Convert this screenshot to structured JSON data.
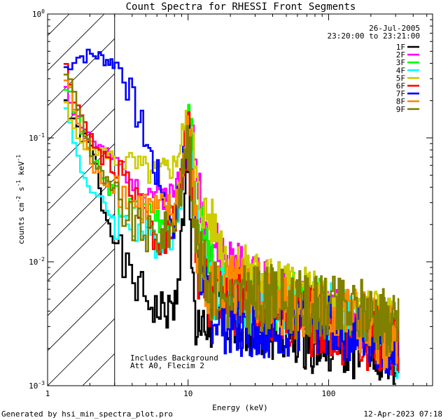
{
  "chart_data": {
    "type": "line",
    "title": "Count Spectra for RHESSI Front Segments",
    "xlabel": "Energy (keV)",
    "ylabel_parts": [
      "counts cm",
      "-2",
      " s",
      "-1",
      " keV",
      "-1"
    ],
    "x_scale": "log",
    "y_scale": "log",
    "xlim": [
      1.0,
      550
    ],
    "ylim": [
      0.001,
      1.0
    ],
    "x_ticks": [
      {
        "value": 1,
        "label": "1"
      },
      {
        "value": 10,
        "label": "10"
      },
      {
        "value": 100,
        "label": "100"
      }
    ],
    "y_ticks": [
      {
        "value": 1,
        "mant": "10",
        "exp": "0"
      },
      {
        "value": 0.1,
        "mant": "10",
        "exp": "-1"
      },
      {
        "value": 0.01,
        "mant": "10",
        "exp": "-2"
      },
      {
        "value": 0.001,
        "mant": "10",
        "exp": "-3"
      }
    ],
    "date": "26-Jul-2005",
    "time_range": "23:20:00 to 23:21:00",
    "annotation_lines": [
      "Includes Background",
      "Att A0, Flecim 2"
    ],
    "hatched_region_keV": [
      1.0,
      3.0
    ],
    "footer_left": "Generated by hsi_min_spectra_plot.pro",
    "footer_right": "12-Apr-2023 07:18",
    "series": [
      {
        "name": "1F",
        "color": "#000000",
        "anchors": [
          [
            1.3,
            0.23
          ],
          [
            1.5,
            0.13
          ],
          [
            1.8,
            0.1
          ],
          [
            2.2,
            0.07
          ],
          [
            2.4,
            0.03
          ],
          [
            2.8,
            0.02
          ],
          [
            3.5,
            0.009
          ],
          [
            4.5,
            0.006
          ],
          [
            6,
            0.004
          ],
          [
            8,
            0.004
          ],
          [
            10,
            0.05
          ],
          [
            11.5,
            0.002
          ],
          [
            14,
            0.003
          ],
          [
            20,
            0.004
          ],
          [
            40,
            0.003
          ],
          [
            100,
            0.0022
          ],
          [
            200,
            0.002
          ],
          [
            300,
            0.0015
          ]
        ],
        "jitter": 0.28,
        "seed": 1
      },
      {
        "name": "2F",
        "color": "#ff00ff",
        "anchors": [
          [
            1.3,
            0.3
          ],
          [
            1.6,
            0.15
          ],
          [
            2.2,
            0.09
          ],
          [
            3.2,
            0.06
          ],
          [
            4,
            0.05
          ],
          [
            5,
            0.04
          ],
          [
            6,
            0.035
          ],
          [
            8,
            0.035
          ],
          [
            10,
            0.12
          ],
          [
            12,
            0.04
          ],
          [
            14,
            0.015
          ],
          [
            20,
            0.01
          ],
          [
            40,
            0.006
          ],
          [
            100,
            0.004
          ],
          [
            200,
            0.003
          ],
          [
            300,
            0.002
          ]
        ],
        "jitter": 0.2,
        "seed": 2
      },
      {
        "name": "3F",
        "color": "#00ff00",
        "anchors": [
          [
            1.3,
            0.3
          ],
          [
            1.6,
            0.15
          ],
          [
            2.2,
            0.06
          ],
          [
            3.2,
            0.03
          ],
          [
            4,
            0.025
          ],
          [
            6,
            0.025
          ],
          [
            8,
            0.02
          ],
          [
            10,
            0.12
          ],
          [
            12,
            0.02
          ],
          [
            15,
            0.008
          ],
          [
            20,
            0.006
          ],
          [
            40,
            0.005
          ],
          [
            100,
            0.004
          ],
          [
            200,
            0.003
          ],
          [
            300,
            0.0025
          ]
        ],
        "jitter": 0.25,
        "seed": 3
      },
      {
        "name": "4F",
        "color": "#00ffff",
        "anchors": [
          [
            1.3,
            0.25
          ],
          [
            1.5,
            0.1
          ],
          [
            1.8,
            0.05
          ],
          [
            2.2,
            0.035
          ],
          [
            3.2,
            0.02
          ],
          [
            4,
            0.02
          ],
          [
            6,
            0.015
          ],
          [
            8,
            0.018
          ],
          [
            10,
            0.08
          ],
          [
            12,
            0.012
          ],
          [
            15,
            0.006
          ],
          [
            20,
            0.005
          ],
          [
            40,
            0.004
          ],
          [
            100,
            0.004
          ],
          [
            200,
            0.003
          ],
          [
            300,
            0.002
          ]
        ],
        "jitter": 0.25,
        "seed": 4
      },
      {
        "name": "5F",
        "color": "#cccc00",
        "anchors": [
          [
            1.3,
            0.2
          ],
          [
            1.6,
            0.1
          ],
          [
            2.2,
            0.08
          ],
          [
            3.2,
            0.07
          ],
          [
            4,
            0.06
          ],
          [
            6,
            0.05
          ],
          [
            8,
            0.06
          ],
          [
            10,
            0.14
          ],
          [
            12,
            0.03
          ],
          [
            15,
            0.02
          ],
          [
            20,
            0.01
          ],
          [
            40,
            0.007
          ],
          [
            100,
            0.005
          ],
          [
            200,
            0.004
          ],
          [
            300,
            0.003
          ]
        ],
        "jitter": 0.2,
        "seed": 5
      },
      {
        "name": "6F",
        "color": "#ff0000",
        "anchors": [
          [
            1.3,
            0.42
          ],
          [
            1.6,
            0.2
          ],
          [
            2.2,
            0.08
          ],
          [
            3.2,
            0.05
          ],
          [
            4,
            0.035
          ],
          [
            5,
            0.025
          ],
          [
            6,
            0.015
          ],
          [
            8,
            0.02
          ],
          [
            10,
            0.1
          ],
          [
            12,
            0.008
          ],
          [
            15,
            0.005
          ],
          [
            20,
            0.005
          ],
          [
            40,
            0.004
          ],
          [
            100,
            0.003
          ],
          [
            200,
            0.0025
          ],
          [
            300,
            0.002
          ]
        ],
        "jitter": 0.28,
        "seed": 6
      },
      {
        "name": "7F",
        "color": "#0000ff",
        "anchors": [
          [
            1.3,
            0.35
          ],
          [
            1.6,
            0.45
          ],
          [
            2.2,
            0.47
          ],
          [
            3,
            0.4
          ],
          [
            3.5,
            0.35
          ],
          [
            4,
            0.2
          ],
          [
            5,
            0.1
          ],
          [
            6,
            0.05
          ],
          [
            7,
            0.03
          ],
          [
            8,
            0.02
          ],
          [
            10,
            0.1
          ],
          [
            12,
            0.01
          ],
          [
            14,
            0.004
          ],
          [
            20,
            0.003
          ],
          [
            40,
            0.003
          ],
          [
            100,
            0.003
          ],
          [
            200,
            0.0025
          ],
          [
            300,
            0.002
          ]
        ],
        "jitter": 0.25,
        "seed": 7
      },
      {
        "name": "8F",
        "color": "#ff8800",
        "anchors": [
          [
            1.3,
            0.35
          ],
          [
            1.6,
            0.15
          ],
          [
            2.2,
            0.05
          ],
          [
            3.2,
            0.04
          ],
          [
            4,
            0.03
          ],
          [
            6,
            0.025
          ],
          [
            8,
            0.025
          ],
          [
            10,
            0.1
          ],
          [
            12,
            0.01
          ],
          [
            15,
            0.006
          ],
          [
            20,
            0.006
          ],
          [
            40,
            0.005
          ],
          [
            100,
            0.004
          ],
          [
            200,
            0.003
          ],
          [
            300,
            0.0022
          ]
        ],
        "jitter": 0.28,
        "seed": 8
      },
      {
        "name": "9F",
        "color": "#808000",
        "anchors": [
          [
            1.3,
            0.4
          ],
          [
            1.6,
            0.2
          ],
          [
            2.2,
            0.06
          ],
          [
            3.2,
            0.03
          ],
          [
            4,
            0.02
          ],
          [
            6,
            0.015
          ],
          [
            8,
            0.02
          ],
          [
            10,
            0.09
          ],
          [
            12,
            0.01
          ],
          [
            15,
            0.006
          ],
          [
            20,
            0.005
          ],
          [
            40,
            0.005
          ],
          [
            100,
            0.004
          ],
          [
            200,
            0.004
          ],
          [
            300,
            0.003
          ]
        ],
        "jitter": 0.28,
        "seed": 9
      }
    ]
  }
}
